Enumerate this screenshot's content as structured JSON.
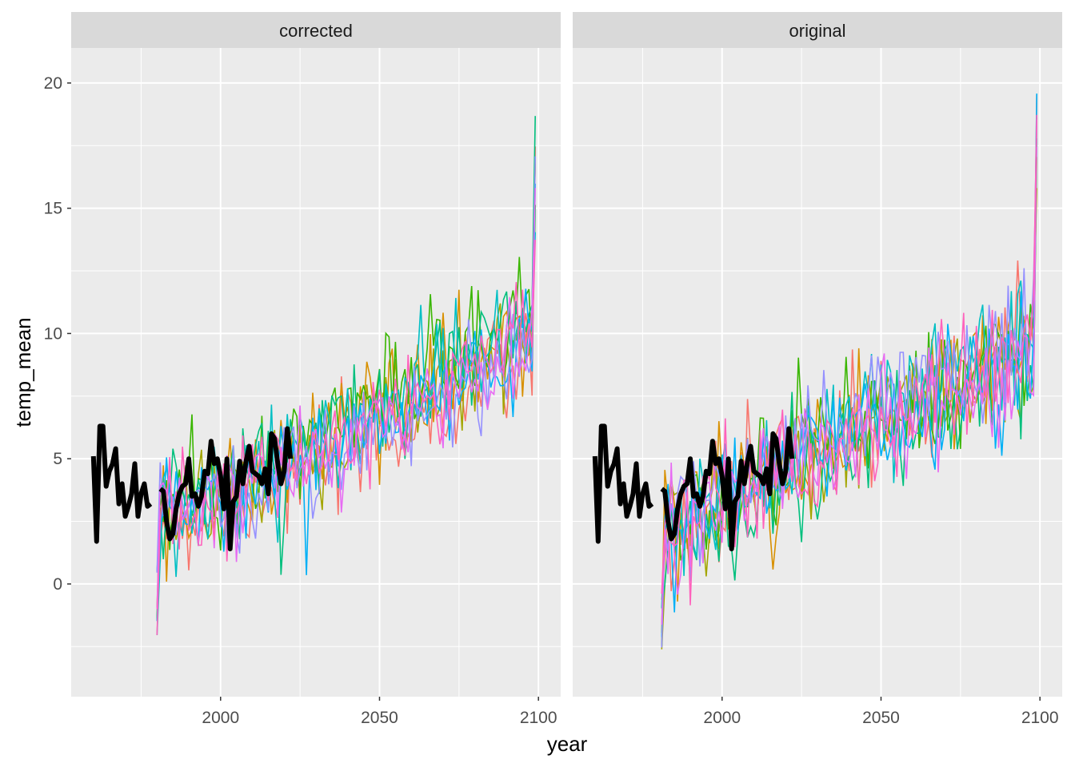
{
  "chart_data": {
    "type": "line",
    "xlabel": "year",
    "ylabel": "temp_mean",
    "xlim": [
      1953,
      2107
    ],
    "ylim": [
      -4.5,
      21.4
    ],
    "x_ticks": [
      2000,
      2050,
      2100
    ],
    "y_ticks": [
      0,
      5,
      10,
      15,
      20
    ],
    "grid": true,
    "legend": "none",
    "series_colors": [
      "#F8766D",
      "#D89000",
      "#A3A500",
      "#39B600",
      "#00BF7D",
      "#00BFC4",
      "#00B0F6",
      "#9590FF",
      "#E76BF3",
      "#FF62BC"
    ],
    "observed": {
      "color": "#000000",
      "segments": [
        {
          "x": [
            1960,
            1961,
            1962,
            1963,
            1964,
            1965,
            1966,
            1967,
            1968,
            1969,
            1970,
            1971,
            1972,
            1973,
            1974,
            1975,
            1976,
            1977,
            1978
          ],
          "y": [
            5.1,
            1.7,
            6.3,
            6.3,
            3.9,
            4.5,
            4.8,
            5.4,
            3.2,
            4.0,
            2.7,
            3.1,
            3.6,
            4.8,
            2.7,
            3.6,
            4.0,
            3.1,
            3.2
          ]
        },
        {
          "x": [
            1981,
            1982,
            1983,
            1984,
            1985,
            1986,
            1987,
            1988,
            1989,
            1990,
            1991,
            1992,
            1993,
            1994,
            1995,
            1996,
            1997,
            1998,
            1999,
            2000,
            2001,
            2002,
            2003,
            2004,
            2005,
            2006,
            2007,
            2008,
            2009,
            2010,
            2011,
            2012,
            2013,
            2014,
            2015,
            2016,
            2017,
            2018,
            2019,
            2020,
            2021,
            2022
          ],
          "y": [
            3.8,
            3.7,
            2.5,
            1.8,
            2.0,
            3.0,
            3.6,
            3.9,
            4.0,
            5.0,
            3.5,
            3.6,
            3.1,
            3.5,
            4.5,
            4.4,
            5.7,
            4.8,
            5.0,
            4.3,
            3.0,
            5.0,
            1.4,
            3.3,
            3.5,
            4.9,
            4.0,
            4.9,
            5.5,
            4.5,
            4.4,
            4.3,
            4.0,
            4.6,
            3.6,
            6.0,
            5.8,
            4.8,
            4.0,
            4.5,
            6.2,
            5.0
          ]
        }
      ]
    },
    "panels": [
      {
        "strip": "corrected",
        "ensemble": {
          "years_from": 1980,
          "years_to": 2099,
          "mean_anchor_years": [
            1980,
            2000,
            2020,
            2040,
            2060,
            2080,
            2099
          ],
          "mean_anchor_values": [
            2.9,
            3.5,
            4.6,
            5.9,
            7.3,
            8.5,
            10.2
          ],
          "noise_sd": 1.1,
          "final_year_max": 19.1,
          "first_year_min": -2.1
        }
      },
      {
        "strip": "original",
        "ensemble": {
          "years_from": 1981,
          "years_to": 2099,
          "mean_anchor_years": [
            1980,
            2000,
            2020,
            2040,
            2060,
            2080,
            2099
          ],
          "mean_anchor_values": [
            2.0,
            3.1,
            4.6,
            5.8,
            7.0,
            8.3,
            9.6
          ],
          "noise_sd": 1.2,
          "final_year_max": 20.1,
          "first_year_min": -3.3
        }
      }
    ]
  }
}
